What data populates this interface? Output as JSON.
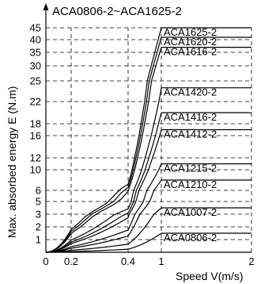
{
  "chart_data": {
    "type": "line",
    "title": "ACA0806-2~ACA1625-2",
    "xlabel": "Speed V(m/s)",
    "ylabel": "Max. absorbed energy E (N.m)",
    "x_ticks": [
      {
        "value": 0,
        "label": "0"
      },
      {
        "value": 0.2,
        "label": "0.2"
      },
      {
        "value": 0.4,
        "label": "0.4"
      },
      {
        "value": 1,
        "label": "1"
      },
      {
        "value": 2,
        "label": "2"
      }
    ],
    "y_ticks": [
      {
        "value": 1,
        "label": "1"
      },
      {
        "value": 2,
        "label": "2"
      },
      {
        "value": 3,
        "label": "3"
      },
      {
        "value": 5,
        "label": "5"
      },
      {
        "value": 6,
        "label": "6"
      },
      {
        "value": 10,
        "label": "10"
      },
      {
        "value": 12,
        "label": "12"
      },
      {
        "value": 16,
        "label": "16"
      },
      {
        "value": 18,
        "label": "18"
      },
      {
        "value": 22,
        "label": "22"
      },
      {
        "value": 25,
        "label": "25"
      },
      {
        "value": 30,
        "label": "30"
      },
      {
        "value": 35,
        "label": "35"
      },
      {
        "value": 40,
        "label": "40"
      },
      {
        "value": 45,
        "label": "45"
      }
    ],
    "grid": true,
    "series": [
      {
        "name": "ACA0806-2",
        "max_energy": 1.5
      },
      {
        "name": "ACA1007-2",
        "max_energy": 4
      },
      {
        "name": "ACA1210-2",
        "max_energy": 8
      },
      {
        "name": "ACA1215-2",
        "max_energy": 11
      },
      {
        "name": "ACA1412-2",
        "max_energy": 17
      },
      {
        "name": "ACA1416-2",
        "max_energy": 20
      },
      {
        "name": "ACA1420-2",
        "max_energy": 24
      },
      {
        "name": "ACA1616-2",
        "max_energy": 37
      },
      {
        "name": "ACA1620-2",
        "max_energy": 41
      },
      {
        "name": "ACA1625-2",
        "max_energy": 45
      }
    ]
  }
}
